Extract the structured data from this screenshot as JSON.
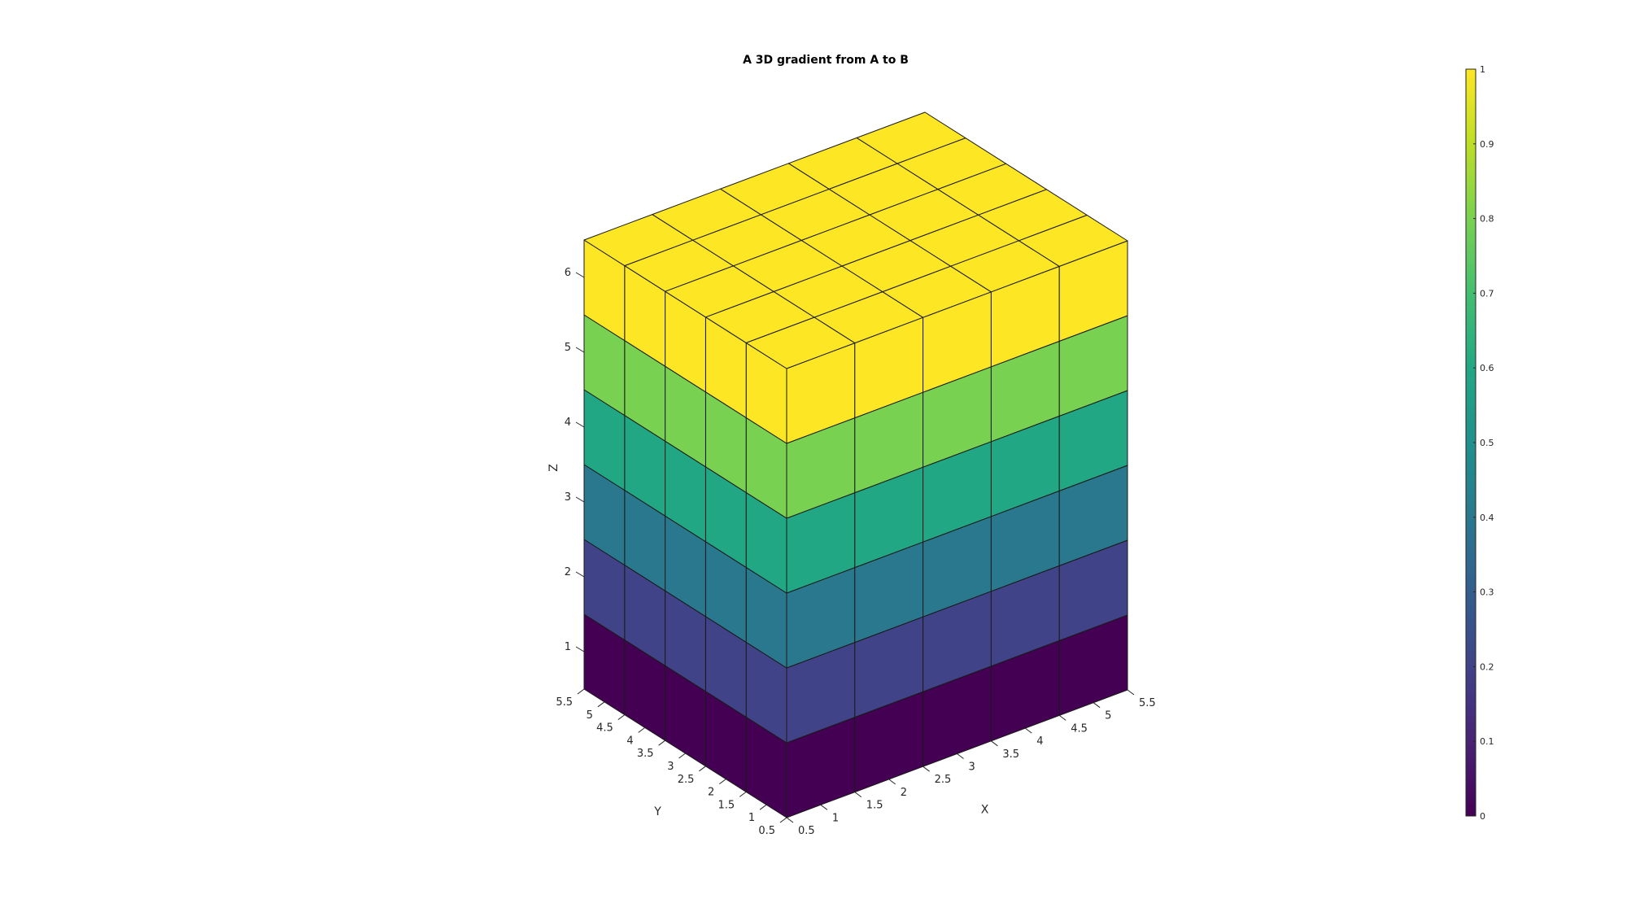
{
  "chart_data": {
    "type": "heatmap",
    "title": "A 3D gradient from A to B",
    "xlabel": "X",
    "ylabel": "Y",
    "zlabel": "Z",
    "x_ticks": [
      "0.5",
      "1",
      "1.5",
      "2",
      "2.5",
      "3",
      "3.5",
      "4",
      "4.5",
      "5",
      "5.5"
    ],
    "y_ticks": [
      "0.5",
      "1",
      "1.5",
      "2",
      "2.5",
      "3",
      "3.5",
      "4",
      "4.5",
      "5",
      "5.5"
    ],
    "z_ticks": [
      "1",
      "2",
      "3",
      "4",
      "5",
      "6"
    ],
    "xlim": [
      0.5,
      5.5
    ],
    "ylim": [
      0.5,
      5.5
    ],
    "zlim": [
      0.5,
      6.5
    ],
    "grid_size": [
      5,
      5,
      6
    ],
    "layer_values": [
      0,
      0.2,
      0.4,
      0.6,
      0.8,
      1.0
    ],
    "colormap": "viridis",
    "colorbar": {
      "ticks": [
        "0",
        "0.1",
        "0.2",
        "0.3",
        "0.4",
        "0.5",
        "0.6",
        "0.7",
        "0.8",
        "0.9",
        "1"
      ],
      "range": [
        0,
        1
      ]
    },
    "grid": false
  }
}
